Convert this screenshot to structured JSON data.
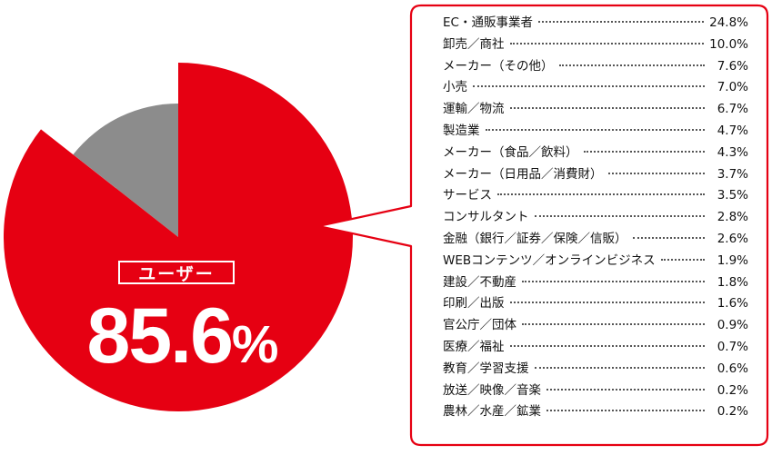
{
  "chart_data": {
    "type": "pie",
    "slices": [
      {
        "label": "ユーザー",
        "value": 85.6,
        "color": "#e60012"
      },
      {
        "label": "",
        "value": 14.4,
        "color": "#8c8c8c"
      }
    ],
    "highlight_label": "ユーザー",
    "highlight_value": "85.6",
    "highlight_unit": "%",
    "breakdown": [
      {
        "name": "EC・通販事業者",
        "value": "24.8%"
      },
      {
        "name": "卸売／商社",
        "value": "10.0%"
      },
      {
        "name": "メーカー（その他）",
        "value": "7.6%"
      },
      {
        "name": "小売",
        "value": "7.0%"
      },
      {
        "name": "運輸／物流",
        "value": "6.7%"
      },
      {
        "name": "製造業",
        "value": "4.7%"
      },
      {
        "name": "メーカー（食品／飲料）",
        "value": "4.3%"
      },
      {
        "name": "メーカー（日用品／消費財）",
        "value": "3.7%"
      },
      {
        "name": "サービス",
        "value": "3.5%"
      },
      {
        "name": "コンサルタント",
        "value": "2.8%"
      },
      {
        "name": "金融（銀行／証券／保険／信販）",
        "value": "2.6%"
      },
      {
        "name": "WEBコンテンツ／オンラインビジネス",
        "value": "1.9%"
      },
      {
        "name": "建設／不動産",
        "value": "1.8%"
      },
      {
        "name": "印刷／出版",
        "value": "1.6%"
      },
      {
        "name": "官公庁／団体",
        "value": "0.9%"
      },
      {
        "name": "医療／福祉",
        "value": "0.7%"
      },
      {
        "name": "教育／学習支援",
        "value": "0.6%"
      },
      {
        "name": "放送／映像／音楽",
        "value": "0.2%"
      },
      {
        "name": "農林／水産／鉱業",
        "value": "0.2%"
      }
    ]
  }
}
